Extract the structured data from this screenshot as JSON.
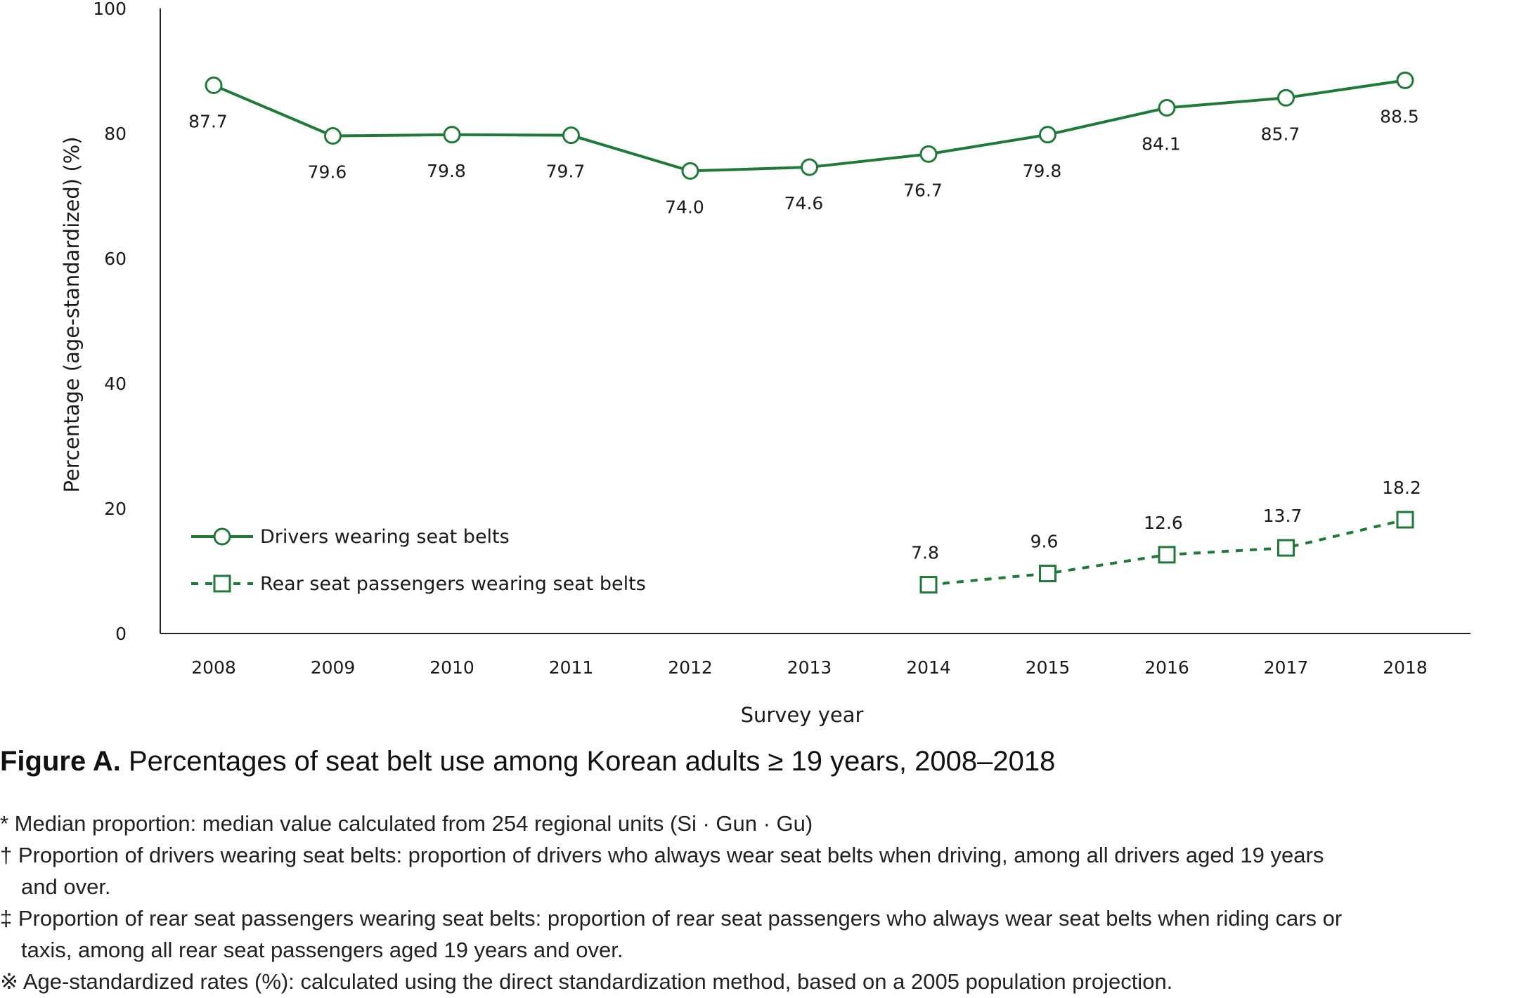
{
  "chart_data": {
    "type": "line",
    "ylabel": "Percentage (age-standardized) (%)",
    "xlabel": "Survey year",
    "ylim": [
      0,
      100
    ],
    "yticks": [
      0,
      20,
      40,
      60,
      80,
      100
    ],
    "categories": [
      "2008",
      "2009",
      "2010",
      "2011",
      "2012",
      "2013",
      "2014",
      "2015",
      "2016",
      "2017",
      "2018"
    ],
    "series": [
      {
        "name": "Drivers wearing seat belts",
        "marker": "circle",
        "style": "solid",
        "values": [
          87.7,
          79.6,
          79.8,
          79.7,
          74.0,
          74.6,
          76.7,
          79.8,
          84.1,
          85.7,
          88.5
        ],
        "labels": [
          "87.7",
          "79.6",
          "79.8",
          "79.7",
          "74.0",
          "74.6",
          "76.7",
          "79.8",
          "84.1",
          "85.7",
          "88.5"
        ]
      },
      {
        "name": "Rear seat passengers wearing seat belts",
        "marker": "square",
        "style": "dashed",
        "values": [
          null,
          null,
          null,
          null,
          null,
          null,
          7.8,
          9.6,
          12.6,
          13.7,
          18.2
        ],
        "labels": [
          null,
          null,
          null,
          null,
          null,
          null,
          "7.8",
          "9.6",
          "12.6",
          "13.7",
          "18.2"
        ]
      }
    ],
    "color": "#1f7a3a",
    "legend_placement": "bottom-left",
    "grid": false
  },
  "caption": {
    "prefix": "Figure A.",
    "text": " Percentages of seat belt use among Korean adults ≥ 19 years, 2008–2018"
  },
  "notes": [
    "* Median proportion: median value calculated from 254 regional units (Si · Gun · Gu)",
    "† Proportion of drivers wearing seat belts: proportion of drivers who always wear seat belts when driving, among all drivers aged 19 years",
    "and over.",
    "‡ Proportion of rear seat passengers wearing seat belts: proportion of rear seat passengers who always wear seat belts when riding cars or",
    "taxis, among all rear seat passengers aged 19 years and over.",
    "※ Age-standardized rates (%): calculated using the direct standardization method, based on a 2005 population projection."
  ]
}
